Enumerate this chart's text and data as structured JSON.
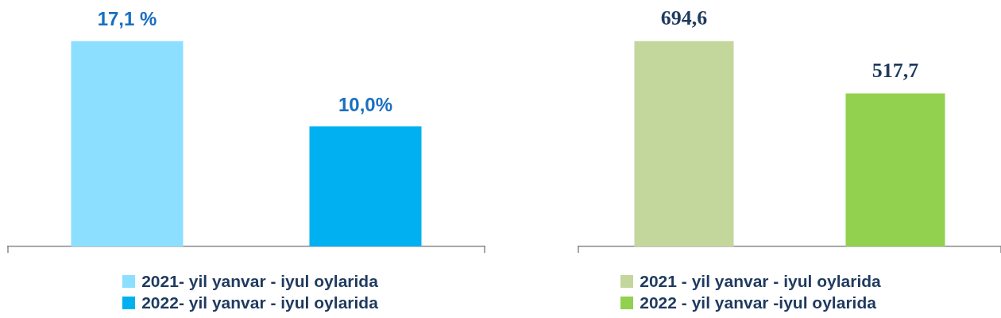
{
  "chart_data": [
    {
      "type": "bar",
      "categories": [
        null,
        null
      ],
      "values": [
        17.1,
        10.0
      ],
      "colors": [
        "#8cdffe",
        "#00b0f0"
      ],
      "value_labels": [
        "17,1 %",
        "10,0%"
      ],
      "annotations": [
        "2021- yil yanvar - iyul oylarida",
        "2022- yil yanvar - iyul oylarida"
      ]
    },
    {
      "type": "bar",
      "categories": [
        null,
        null
      ],
      "values": [
        694.6,
        517.7
      ],
      "colors": [
        "#c3d69b",
        "#92d050"
      ],
      "value_labels": [
        "694,6",
        "517,7"
      ],
      "annotations": [
        "2021 - yil yanvar - iyul oylarida",
        "2022 - yil yanvar -iyul oylarida"
      ]
    }
  ]
}
